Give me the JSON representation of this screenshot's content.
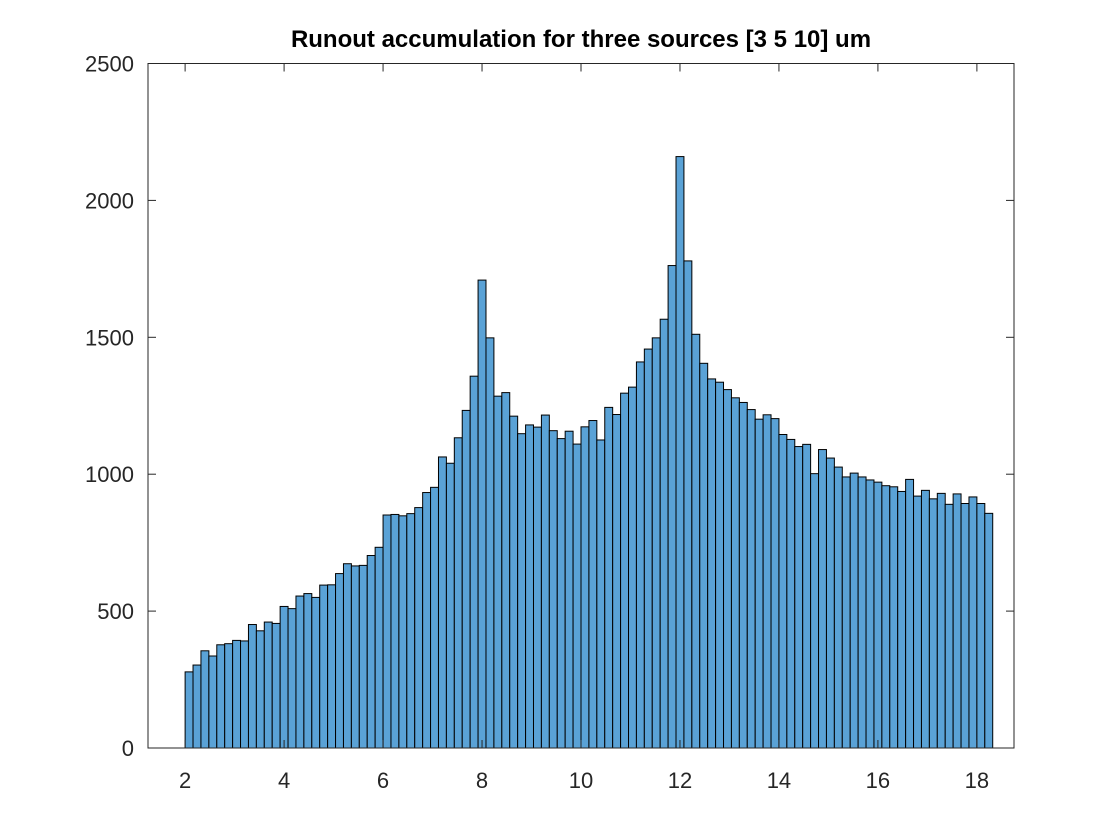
{
  "chart_data": {
    "type": "bar",
    "title": "Runout accumulation for three sources [3 5 10] um",
    "xlabel": "",
    "ylabel": "",
    "xlim": [
      1.25,
      18.75
    ],
    "ylim": [
      0,
      2500
    ],
    "xticks": [
      2,
      4,
      6,
      8,
      10,
      12,
      14,
      16,
      18
    ],
    "yticks": [
      0,
      500,
      1000,
      1500,
      2000,
      2500
    ],
    "grid": false,
    "bin_start": 2,
    "bin_width": 0.16,
    "bar_color": "#5aa2d6",
    "edge_color": "#000000",
    "values": [
      278,
      303,
      355,
      336,
      377,
      381,
      393,
      391,
      451,
      428,
      460,
      455,
      517,
      509,
      555,
      564,
      550,
      595,
      596,
      637,
      673,
      665,
      667,
      703,
      733,
      851,
      853,
      848,
      856,
      878,
      933,
      952,
      1063,
      1040,
      1133,
      1233,
      1358,
      1709,
      1498,
      1285,
      1298,
      1212,
      1148,
      1180,
      1172,
      1216,
      1159,
      1130,
      1157,
      1110,
      1173,
      1196,
      1125,
      1244,
      1218,
      1296,
      1318,
      1410,
      1457,
      1498,
      1566,
      1762,
      2160,
      1779,
      1511,
      1405,
      1348,
      1336,
      1309,
      1279,
      1262,
      1236,
      1201,
      1217,
      1203,
      1145,
      1127,
      1101,
      1109,
      1002,
      1090,
      1059,
      1026,
      990,
      1004,
      990,
      979,
      971,
      958,
      954,
      937,
      981,
      920,
      941,
      910,
      930,
      890,
      928,
      893,
      917,
      893,
      857
    ]
  }
}
